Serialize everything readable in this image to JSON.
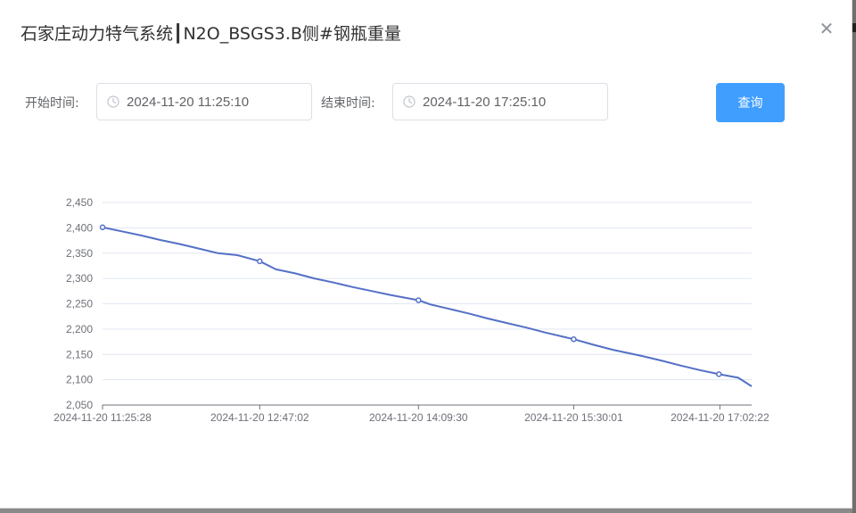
{
  "dialog": {
    "title": "石家庄动力特气系统┃N2O_BSGS3.B侧#钢瓶重量",
    "close_icon": "close-icon"
  },
  "filters": {
    "start_label": "开始时间:",
    "start_value": "2024-11-20 11:25:10",
    "end_label": "结束时间:",
    "end_value": "2024-11-20 17:25:10",
    "query_label": "查询",
    "accent_color": "#409eff"
  },
  "chart_data": {
    "type": "line",
    "title": "",
    "xlabel": "",
    "ylabel": "",
    "x_tick_labels": [
      "2024-11-20 11:25:28",
      "2024-11-20 12:47:02",
      "2024-11-20 14:09:30",
      "2024-11-20 15:30:01",
      "2024-11-20 17:02:22"
    ],
    "y_tick_labels": [
      "2,050",
      "2,100",
      "2,150",
      "2,200",
      "2,250",
      "2,300",
      "2,350",
      "2,400",
      "2,450"
    ],
    "ylim": [
      2050,
      2450
    ],
    "grid": true,
    "series": [
      {
        "name": "钢瓶重量",
        "color": "#5470c6",
        "x_minutes": [
          0,
          10,
          20,
          30,
          40,
          50,
          60,
          70,
          81.6,
          90,
          100,
          110,
          120,
          130,
          140,
          150,
          164,
          170,
          180,
          190,
          200,
          210,
          220,
          230,
          244.6,
          255,
          265,
          280,
          290,
          300,
          310,
          320,
          330,
          337
        ],
        "values": [
          2401,
          2393,
          2385,
          2376,
          2368,
          2359,
          2350,
          2346,
          2334,
          2318,
          2310,
          2300,
          2292,
          2283,
          2275,
          2267,
          2257,
          2249,
          2240,
          2231,
          2221,
          2212,
          2203,
          2193,
          2180,
          2169,
          2159,
          2147,
          2138,
          2128,
          2119,
          2111,
          2104,
          2087
        ],
        "marked_points": [
          0,
          8,
          16,
          24,
          31
        ]
      }
    ]
  }
}
